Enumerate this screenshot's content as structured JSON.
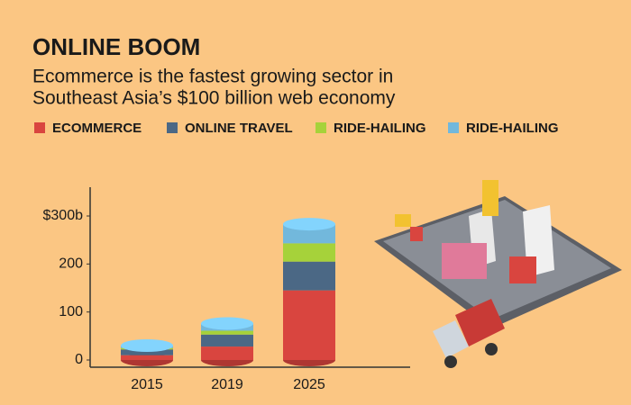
{
  "chart_data": {
    "type": "bar",
    "title": "ONLINE BOOM",
    "subtitle": [
      "Ecommerce is the fastest growing sector in",
      "Southeast Asia’s $100 billion web economy"
    ],
    "categories": [
      "2015",
      "2019",
      "2025"
    ],
    "series": [
      {
        "name": "ECOMMERCE",
        "color": "#d9453f",
        "values": [
          10,
          28,
          145
        ]
      },
      {
        "name": "ONLINE TRAVEL",
        "color": "#4b6885",
        "values": [
          12,
          25,
          60
        ]
      },
      {
        "name": "RIDE-HAILING",
        "color": "#a6d23a",
        "values": [
          3,
          8,
          38
        ]
      },
      {
        "name": "RIDE-HAILING",
        "color": "#72b8dc",
        "values": [
          5,
          15,
          40
        ]
      }
    ],
    "ylim": [
      0,
      360
    ],
    "yticks": [
      0,
      100,
      200,
      {
        "value": 300,
        "label": "$300b"
      }
    ]
  }
}
